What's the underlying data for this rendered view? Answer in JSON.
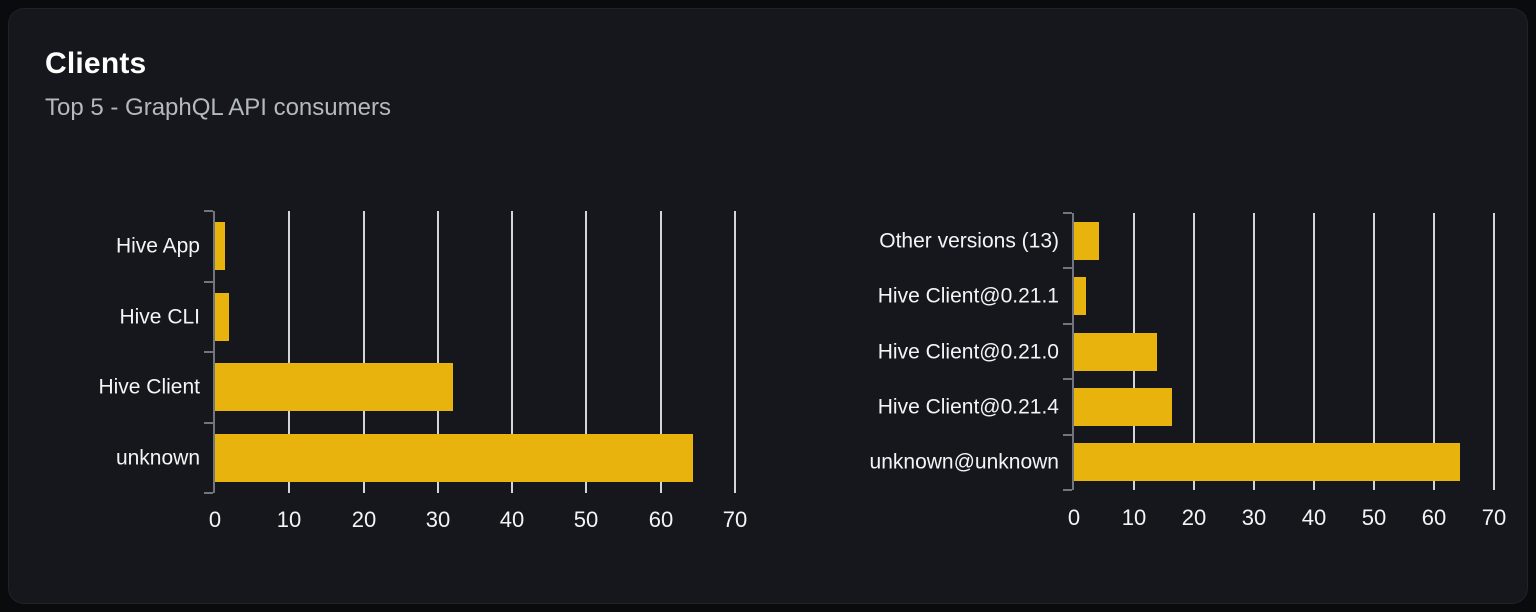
{
  "card": {
    "title": "Clients",
    "subtitle": "Top 5 - GraphQL API consumers"
  },
  "colors": {
    "page_bg": "#0a0b0d",
    "card_bg": "#15171c",
    "bar": "#e8b30d",
    "grid_line": "#e3e6ea",
    "axis": "#71757e",
    "category_label": "#f4f4f6",
    "tick_label": "#f4f4f6",
    "title": "#ffffff",
    "subtitle": "#b4b8bf"
  },
  "chart_data": [
    {
      "type": "bar",
      "orientation": "horizontal",
      "categories": [
        "Hive App",
        "Hive CLI",
        "Hive Client",
        "unknown"
      ],
      "values": [
        1.3,
        1.9,
        32,
        64.3
      ],
      "xlabel": "",
      "ylabel": "",
      "xlim": [
        0,
        70
      ],
      "xticks": [
        0,
        10,
        20,
        30,
        40,
        50,
        60,
        70
      ],
      "grid": true,
      "legend_position": "none"
    },
    {
      "type": "bar",
      "orientation": "horizontal",
      "categories": [
        "Other versions (13)",
        "Hive Client@0.21.1",
        "Hive Client@0.21.0",
        "Hive Client@0.21.4",
        "unknown@unknown"
      ],
      "values": [
        4.1,
        2.0,
        13.8,
        16.4,
        64.4
      ],
      "xlabel": "",
      "ylabel": "",
      "xlim": [
        0,
        70
      ],
      "xticks": [
        0,
        10,
        20,
        30,
        40,
        50,
        60,
        70
      ],
      "grid": true,
      "legend_position": "none"
    }
  ]
}
